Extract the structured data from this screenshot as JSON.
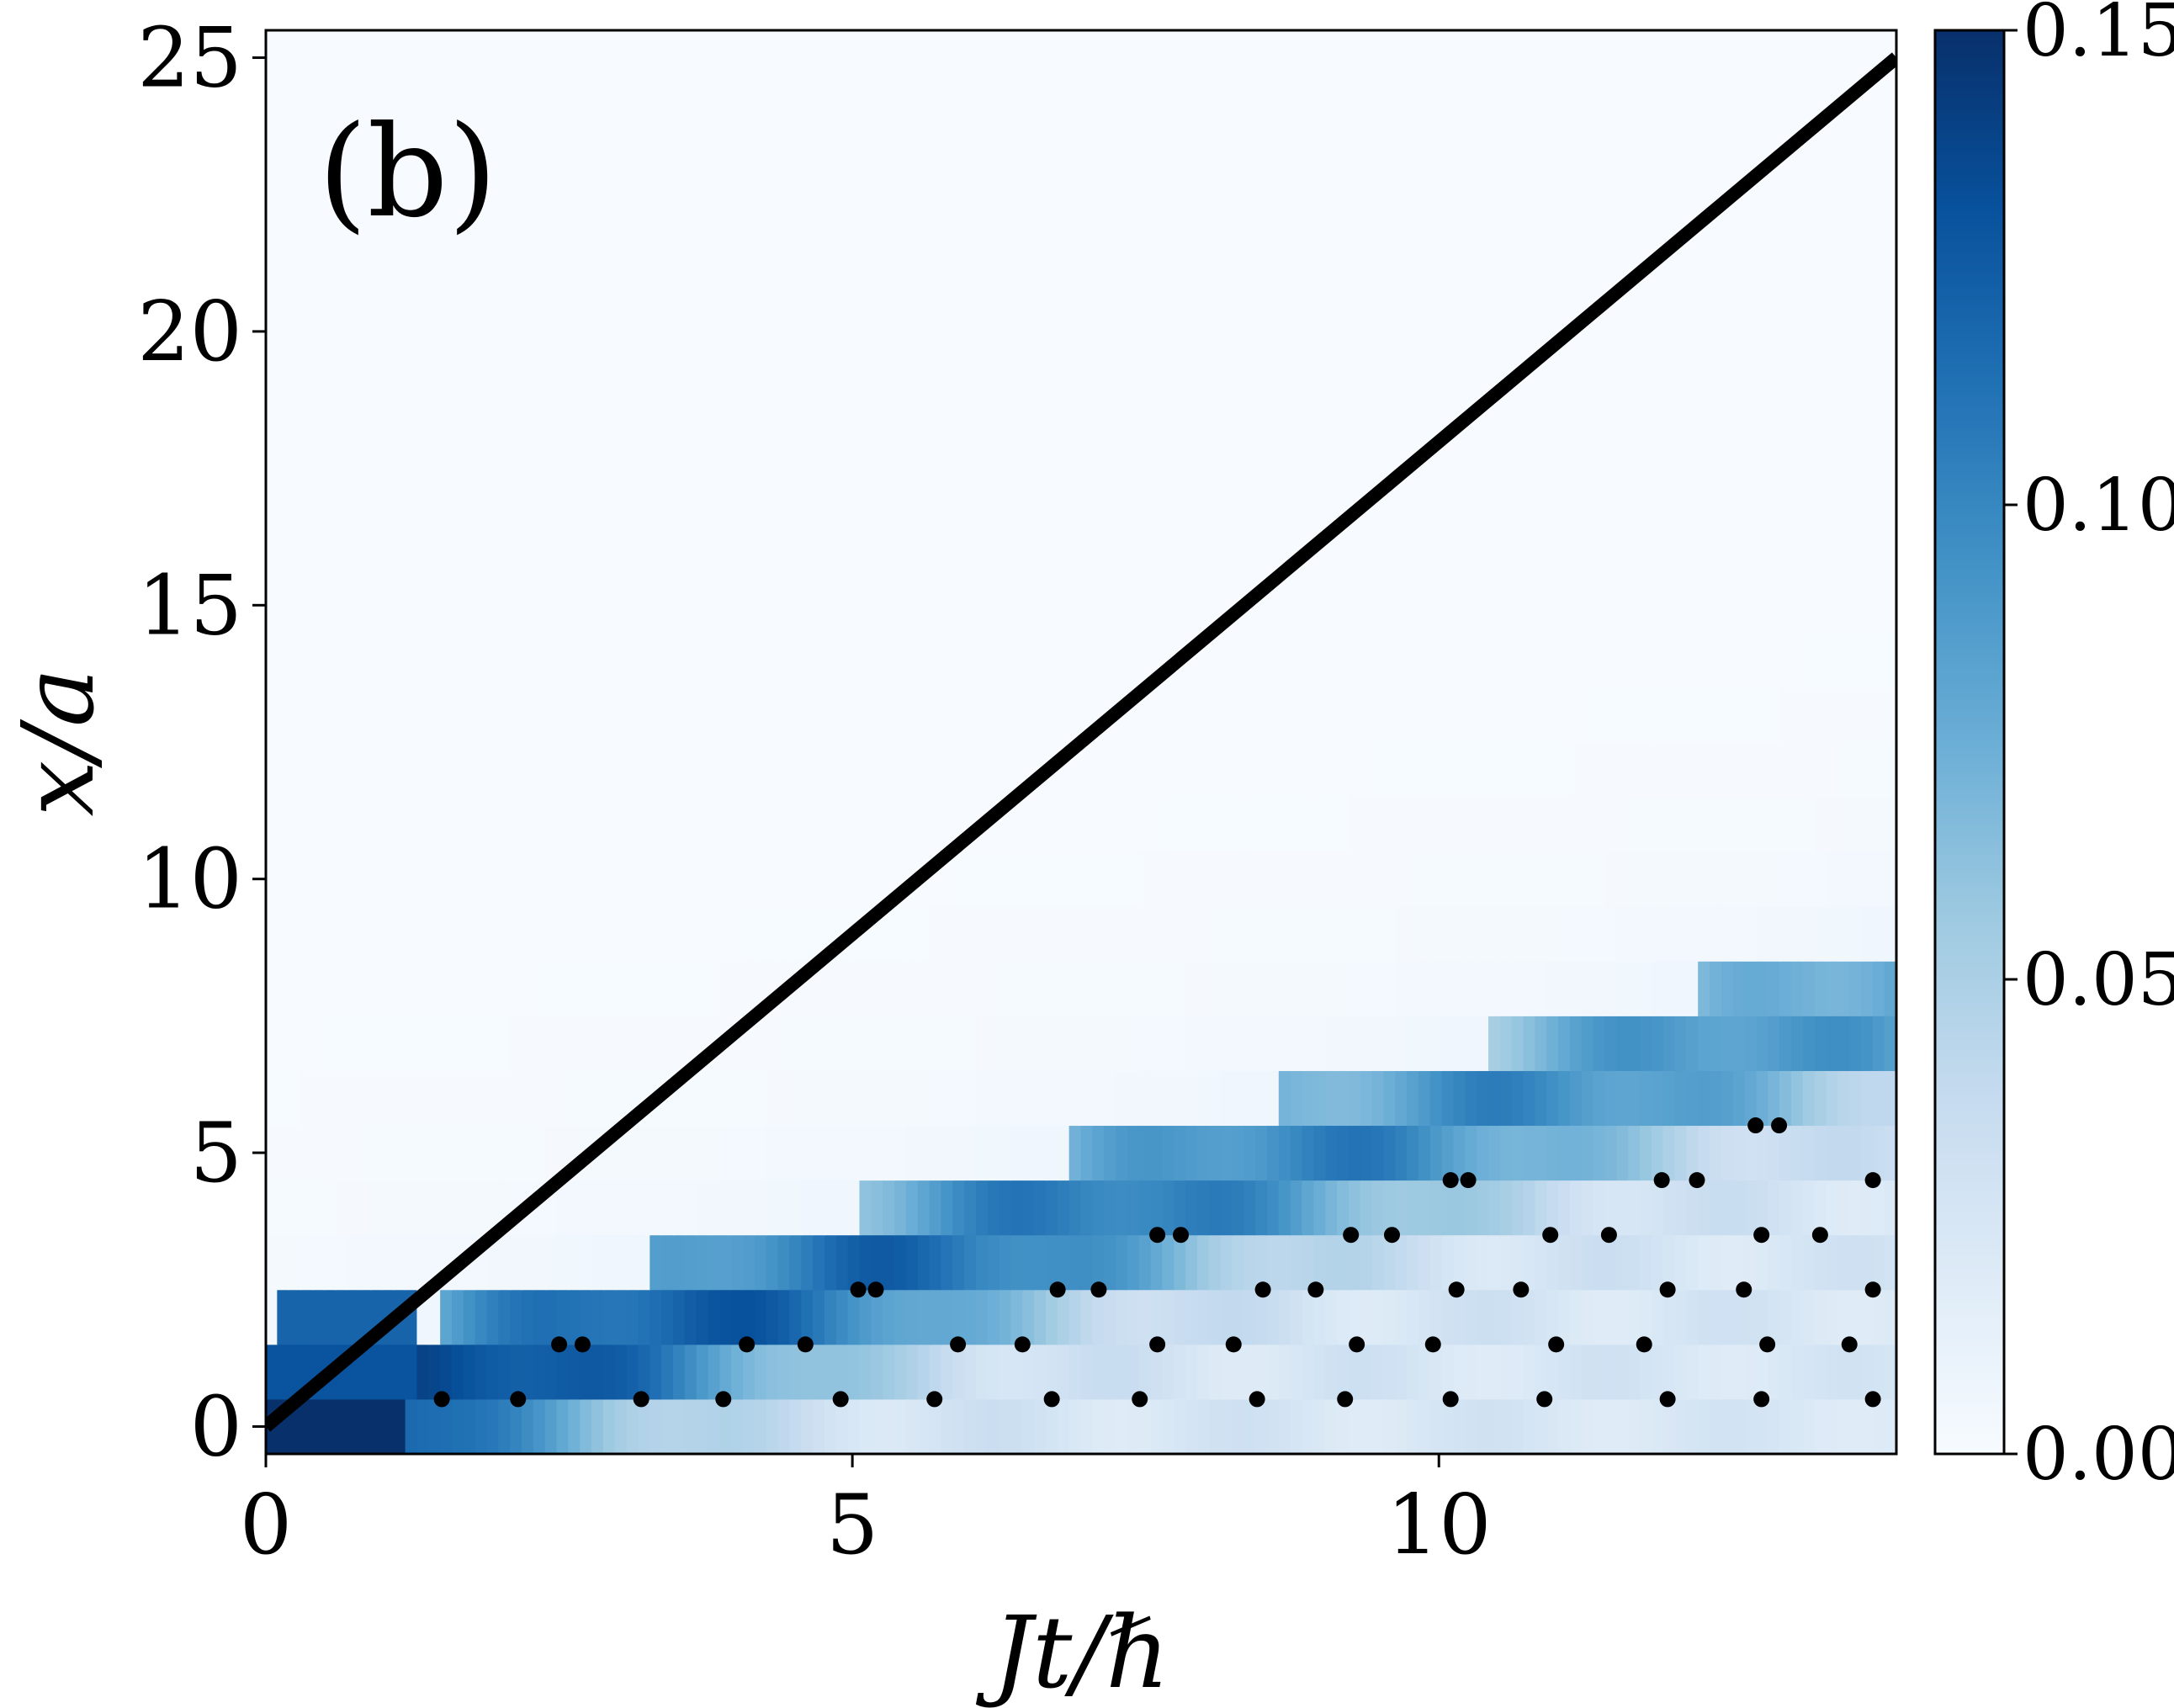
{
  "chart_data": {
    "type": "heatmap",
    "panel_label": "(b)",
    "xlabel": "Jt/ℏ",
    "ylabel": "x/a",
    "xlim": [
      0,
      13.9
    ],
    "ylim": [
      -0.5,
      25.5
    ],
    "xticks": [
      0,
      5,
      10
    ],
    "xtick_labels": [
      "0",
      "5",
      "10"
    ],
    "yticks": [
      0,
      5,
      10,
      15,
      20,
      25
    ],
    "ytick_labels": [
      "0",
      "5",
      "10",
      "15",
      "20",
      "25"
    ],
    "colormap": "Blues",
    "colorbar": {
      "range": [
        0.0,
        0.15
      ],
      "ticks": [
        0.0,
        0.05,
        0.1,
        0.15
      ],
      "tick_labels": [
        "0.00",
        "0.05",
        "0.10",
        "0.15"
      ]
    },
    "line": {
      "label": "",
      "x": [
        0,
        13.9
      ],
      "y": [
        0,
        25
      ],
      "color": "#000000"
    },
    "scatter_points": [
      {
        "x": 1.5,
        "y": 0
      },
      {
        "x": 2.15,
        "y": 0
      },
      {
        "x": 3.2,
        "y": 0
      },
      {
        "x": 3.9,
        "y": 0
      },
      {
        "x": 4.9,
        "y": 0
      },
      {
        "x": 5.7,
        "y": 0
      },
      {
        "x": 6.7,
        "y": 0
      },
      {
        "x": 7.45,
        "y": 0
      },
      {
        "x": 8.45,
        "y": 0
      },
      {
        "x": 9.2,
        "y": 0
      },
      {
        "x": 10.1,
        "y": 0
      },
      {
        "x": 10.9,
        "y": 0
      },
      {
        "x": 11.95,
        "y": 0
      },
      {
        "x": 12.75,
        "y": 0
      },
      {
        "x": 13.7,
        "y": 0
      },
      {
        "x": 2.5,
        "y": 1
      },
      {
        "x": 2.7,
        "y": 1
      },
      {
        "x": 4.1,
        "y": 1
      },
      {
        "x": 4.6,
        "y": 1
      },
      {
        "x": 5.9,
        "y": 1
      },
      {
        "x": 6.45,
        "y": 1
      },
      {
        "x": 7.6,
        "y": 1
      },
      {
        "x": 8.25,
        "y": 1
      },
      {
        "x": 9.3,
        "y": 1
      },
      {
        "x": 9.95,
        "y": 1
      },
      {
        "x": 11.0,
        "y": 1
      },
      {
        "x": 11.75,
        "y": 1
      },
      {
        "x": 12.8,
        "y": 1
      },
      {
        "x": 13.5,
        "y": 1
      },
      {
        "x": 5.05,
        "y": 2
      },
      {
        "x": 5.2,
        "y": 2
      },
      {
        "x": 6.75,
        "y": 2
      },
      {
        "x": 7.1,
        "y": 2
      },
      {
        "x": 8.5,
        "y": 2
      },
      {
        "x": 8.95,
        "y": 2
      },
      {
        "x": 10.15,
        "y": 2
      },
      {
        "x": 10.7,
        "y": 2
      },
      {
        "x": 11.95,
        "y": 2
      },
      {
        "x": 12.6,
        "y": 2
      },
      {
        "x": 13.7,
        "y": 2
      },
      {
        "x": 7.6,
        "y": 3
      },
      {
        "x": 7.8,
        "y": 3
      },
      {
        "x": 9.25,
        "y": 3
      },
      {
        "x": 9.6,
        "y": 3
      },
      {
        "x": 10.95,
        "y": 3
      },
      {
        "x": 11.45,
        "y": 3
      },
      {
        "x": 12.75,
        "y": 3
      },
      {
        "x": 13.25,
        "y": 3
      },
      {
        "x": 10.1,
        "y": 4
      },
      {
        "x": 10.25,
        "y": 4
      },
      {
        "x": 11.9,
        "y": 4
      },
      {
        "x": 12.2,
        "y": 4
      },
      {
        "x": 13.7,
        "y": 4
      },
      {
        "x": 12.7,
        "y": 5
      },
      {
        "x": 12.9,
        "y": 5
      }
    ]
  }
}
